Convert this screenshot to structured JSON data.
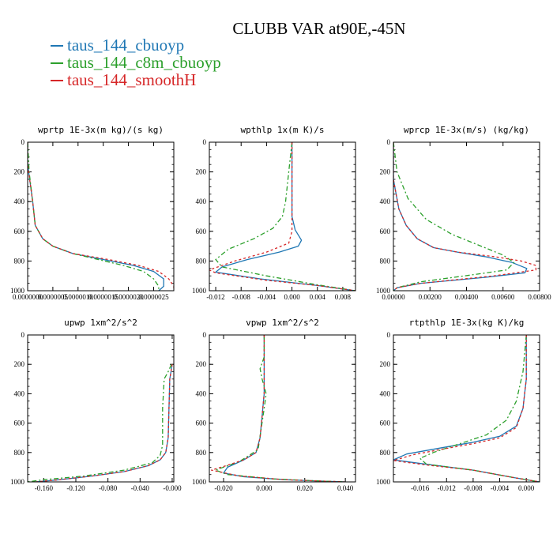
{
  "title": "CLUBB VAR at90E,-45N",
  "legend": [
    {
      "label": "taus_144_cbuoyp",
      "color": "#1f77b4"
    },
    {
      "label": "taus_144_c8m_cbuoyp",
      "color": "#2ca02c"
    },
    {
      "label": "taus_144_smoothH",
      "color": "#d62728"
    }
  ],
  "chart_data": [
    {
      "type": "line",
      "title": "wprtp  1E-3x(m kg)/(s kg)",
      "xlim": [
        0,
        2.9e-06
      ],
      "ylim": [
        0,
        1000
      ],
      "y_inverted": true,
      "xticks": [
        {
          "v": 0,
          "label": "0.0000000"
        },
        {
          "v": 5e-07,
          "label": "0.0000005"
        },
        {
          "v": 1e-06,
          "label": "0.0000010"
        },
        {
          "v": 1.5e-06,
          "label": "0.0000015"
        },
        {
          "v": 2e-06,
          "label": "0.0000020"
        },
        {
          "v": 2.5e-06,
          "label": "0.0000025"
        }
      ],
      "yticks": [
        {
          "v": 0,
          "label": "0"
        },
        {
          "v": 200,
          "label": "200"
        },
        {
          "v": 400,
          "label": "400"
        },
        {
          "v": 600,
          "label": "600"
        },
        {
          "v": 800,
          "label": "800"
        },
        {
          "v": 1000,
          "label": "1000"
        }
      ],
      "series": [
        {
          "name": "taus_144_cbuoyp",
          "color": "#1f77b4",
          "dash": "",
          "x": [
            0,
            0,
            1e-07,
            1.5e-07,
            3e-07,
            5e-07,
            9e-07,
            1.5e-06,
            2.1e-06,
            2.5e-06,
            2.7e-06,
            2.7e-06,
            2.6e-06
          ],
          "y": [
            0,
            150,
            400,
            560,
            650,
            700,
            750,
            790,
            830,
            870,
            920,
            970,
            1000
          ]
        },
        {
          "name": "taus_144_c8m_cbuoyp",
          "color": "#2ca02c",
          "dash": "6,3,2,3",
          "x": [
            0,
            3e-08,
            1e-07,
            1.5e-07,
            3e-07,
            5e-07,
            9e-07,
            1.4e-06,
            1.9e-06,
            2.3e-06,
            2.5e-06,
            2.6e-06,
            2.6e-06
          ],
          "y": [
            0,
            200,
            400,
            560,
            650,
            700,
            750,
            790,
            830,
            870,
            920,
            970,
            1000
          ]
        },
        {
          "name": "taus_144_smoothH",
          "color": "#d62728",
          "dash": "3,3",
          "x": [
            0,
            0,
            1e-07,
            1.5e-07,
            3e-07,
            5e-07,
            9e-07,
            1.6e-06,
            2.2e-06,
            2.6e-06,
            2.8e-06,
            2.9e-06,
            2.9e-06
          ],
          "y": [
            0,
            150,
            400,
            560,
            650,
            700,
            750,
            790,
            830,
            870,
            920,
            970,
            1000
          ]
        }
      ]
    },
    {
      "type": "line",
      "title": "wpthlp  1x(m K)/s",
      "xlim": [
        -0.013,
        0.01
      ],
      "ylim": [
        0,
        1000
      ],
      "y_inverted": true,
      "xticks": [
        {
          "v": -0.012,
          "label": "-0.012"
        },
        {
          "v": -0.008,
          "label": "-0.008"
        },
        {
          "v": -0.004,
          "label": "-0.004"
        },
        {
          "v": 0,
          "label": "0.000"
        },
        {
          "v": 0.004,
          "label": "0.004"
        },
        {
          "v": 0.008,
          "label": "0.008"
        }
      ],
      "yticks": [
        {
          "v": 0,
          "label": "0"
        },
        {
          "v": 200,
          "label": "200"
        },
        {
          "v": 400,
          "label": "400"
        },
        {
          "v": 600,
          "label": "600"
        },
        {
          "v": 800,
          "label": "800"
        },
        {
          "v": 1000,
          "label": "1000"
        }
      ],
      "series": [
        {
          "name": "taus_144_cbuoyp",
          "color": "#1f77b4",
          "dash": "",
          "x": [
            0,
            0,
            0,
            0,
            0.0005,
            0.0015,
            0.001,
            -0.002,
            -0.007,
            -0.011,
            -0.012,
            -0.005,
            0.004,
            0.01
          ],
          "y": [
            0,
            200,
            400,
            500,
            590,
            660,
            700,
            740,
            790,
            840,
            875,
            920,
            965,
            1000
          ]
        },
        {
          "name": "taus_144_c8m_cbuoyp",
          "color": "#2ca02c",
          "dash": "6,3,2,3",
          "x": [
            0,
            -0.0005,
            -0.001,
            -0.0015,
            -0.003,
            -0.006,
            -0.01,
            -0.012,
            -0.011,
            -0.004,
            0.004,
            0.01
          ],
          "y": [
            0,
            200,
            400,
            500,
            580,
            650,
            720,
            790,
            840,
            900,
            960,
            1000
          ]
        },
        {
          "name": "taus_144_smoothH",
          "color": "#d62728",
          "dash": "3,3",
          "x": [
            0,
            0,
            0,
            0,
            0,
            -0.0005,
            -0.004,
            -0.009,
            -0.013,
            -0.012,
            -0.004,
            0.004,
            0.01
          ],
          "y": [
            0,
            200,
            400,
            500,
            600,
            680,
            740,
            800,
            860,
            880,
            930,
            965,
            1000
          ]
        }
      ]
    },
    {
      "type": "line",
      "title": "wprcp  1E-3x(m/s) (kg/kg)",
      "xlim": [
        0,
        0.008
      ],
      "ylim": [
        0,
        1000
      ],
      "y_inverted": true,
      "xticks": [
        {
          "v": 0,
          "label": "0.00000"
        },
        {
          "v": 0.002,
          "label": "0.00200"
        },
        {
          "v": 0.004,
          "label": "0.00400"
        },
        {
          "v": 0.006,
          "label": "0.00600"
        },
        {
          "v": 0.008,
          "label": "0.00800"
        }
      ],
      "yticks": [
        {
          "v": 0,
          "label": "0"
        },
        {
          "v": 200,
          "label": "200"
        },
        {
          "v": 400,
          "label": "400"
        },
        {
          "v": 600,
          "label": "600"
        },
        {
          "v": 800,
          "label": "800"
        },
        {
          "v": 1000,
          "label": "1000"
        }
      ],
      "series": [
        {
          "name": "taus_144_cbuoyp",
          "color": "#1f77b4",
          "dash": "",
          "x": [
            0,
            0,
            0.0003,
            0.0007,
            0.0013,
            0.0022,
            0.0035,
            0.005,
            0.0065,
            0.0073,
            0.0072,
            0.005,
            0.0015,
            0.0002,
            0
          ],
          "y": [
            0,
            250,
            450,
            560,
            650,
            710,
            740,
            770,
            810,
            850,
            880,
            910,
            950,
            980,
            1000
          ]
        },
        {
          "name": "taus_144_c8m_cbuoyp",
          "color": "#2ca02c",
          "dash": "6,3,2,3",
          "x": [
            0,
            0.0002,
            0.0008,
            0.0018,
            0.0032,
            0.0048,
            0.006,
            0.0066,
            0.0062,
            0.0045,
            0.0015,
            0.0002,
            0
          ],
          "y": [
            0,
            200,
            380,
            520,
            620,
            700,
            760,
            810,
            860,
            890,
            940,
            980,
            1000
          ]
        },
        {
          "name": "taus_144_smoothH",
          "color": "#d62728",
          "dash": "3,3",
          "x": [
            0,
            0,
            0.0003,
            0.0007,
            0.0013,
            0.0022,
            0.0035,
            0.0055,
            0.007,
            0.0078,
            0.0078,
            0.0055,
            0.0015,
            0.0002,
            0
          ],
          "y": [
            0,
            250,
            450,
            560,
            650,
            710,
            740,
            770,
            800,
            830,
            860,
            900,
            950,
            980,
            1000
          ]
        }
      ]
    },
    {
      "type": "line",
      "title": "upwp  1xm^2/s^2",
      "xlim": [
        -0.18,
        0.002
      ],
      "ylim": [
        0,
        1000
      ],
      "y_inverted": true,
      "xticks": [
        {
          "v": -0.16,
          "label": "-0.160"
        },
        {
          "v": -0.12,
          "label": "-0.120"
        },
        {
          "v": -0.08,
          "label": "-0.080"
        },
        {
          "v": -0.04,
          "label": "-0.040"
        },
        {
          "v": 0,
          "label": "-0.000"
        }
      ],
      "yticks": [
        {
          "v": 0,
          "label": "0"
        },
        {
          "v": 200,
          "label": "200"
        },
        {
          "v": 400,
          "label": "400"
        },
        {
          "v": 600,
          "label": "600"
        },
        {
          "v": 800,
          "label": "800"
        },
        {
          "v": 1000,
          "label": "1000"
        }
      ],
      "series": [
        {
          "name": "taus_144_cbuoyp",
          "color": "#1f77b4",
          "dash": "",
          "x": [
            0,
            -0.003,
            -0.004,
            -0.005,
            -0.008,
            -0.015,
            -0.03,
            -0.06,
            -0.1,
            -0.14,
            -0.17
          ],
          "y": [
            200,
            300,
            500,
            700,
            800,
            850,
            890,
            930,
            960,
            985,
            1000
          ]
        },
        {
          "name": "taus_144_c8m_cbuoyp",
          "color": "#2ca02c",
          "dash": "6,3,2,3",
          "x": [
            -0.001,
            -0.005,
            -0.01,
            -0.012,
            -0.012,
            -0.015,
            -0.025,
            -0.06,
            -0.11,
            -0.16,
            -0.18
          ],
          "y": [
            200,
            250,
            300,
            500,
            750,
            820,
            870,
            920,
            960,
            985,
            1000
          ]
        },
        {
          "name": "taus_144_smoothH",
          "color": "#d62728",
          "dash": "3,3",
          "x": [
            0,
            -0.003,
            -0.004,
            -0.005,
            -0.008,
            -0.015,
            -0.03,
            -0.06,
            -0.1,
            -0.14,
            -0.17
          ],
          "y": [
            200,
            300,
            500,
            700,
            800,
            850,
            890,
            930,
            960,
            985,
            1000
          ]
        }
      ]
    },
    {
      "type": "line",
      "title": "vpwp  1xm^2/s^2",
      "xlim": [
        -0.027,
        0.045
      ],
      "ylim": [
        0,
        1000
      ],
      "y_inverted": true,
      "xticks": [
        {
          "v": -0.02,
          "label": "-0.020"
        },
        {
          "v": 0,
          "label": "0.000"
        },
        {
          "v": 0.02,
          "label": "0.020"
        },
        {
          "v": 0.04,
          "label": "0.040"
        }
      ],
      "yticks": [
        {
          "v": 0,
          "label": "0"
        },
        {
          "v": 200,
          "label": "200"
        },
        {
          "v": 400,
          "label": "400"
        },
        {
          "v": 600,
          "label": "600"
        },
        {
          "v": 800,
          "label": "800"
        },
        {
          "v": 1000,
          "label": "1000"
        }
      ],
      "series": [
        {
          "name": "taus_144_cbuoyp",
          "color": "#1f77b4",
          "dash": "",
          "x": [
            0,
            0,
            0,
            -0.001,
            -0.002,
            -0.004,
            -0.01,
            -0.018,
            -0.02,
            -0.01,
            0.01,
            0.03,
            0.04
          ],
          "y": [
            0,
            200,
            400,
            550,
            700,
            800,
            850,
            900,
            940,
            965,
            985,
            995,
            1000
          ]
        },
        {
          "name": "taus_144_c8m_cbuoyp",
          "color": "#2ca02c",
          "dash": "6,3,2,3",
          "x": [
            0,
            0,
            -0.002,
            -0.001,
            0.001,
            0,
            -0.003,
            -0.012,
            -0.024,
            -0.018,
            0.005,
            0.03,
            0.04
          ],
          "y": [
            0,
            150,
            230,
            300,
            400,
            500,
            780,
            860,
            920,
            950,
            980,
            995,
            1000
          ]
        },
        {
          "name": "taus_144_smoothH",
          "color": "#d62728",
          "dash": "3,3",
          "x": [
            0,
            0,
            0,
            -0.001,
            -0.002,
            -0.004,
            -0.01,
            -0.02,
            -0.026,
            -0.012,
            0.01,
            0.03,
            0.04
          ],
          "y": [
            0,
            200,
            400,
            550,
            700,
            800,
            850,
            895,
            920,
            960,
            985,
            995,
            1000
          ]
        }
      ]
    },
    {
      "type": "line",
      "title": "rtpthlp  1E-3x(kg K)/kg",
      "xlim": [
        -0.02,
        0.002
      ],
      "ylim": [
        0,
        1000
      ],
      "y_inverted": true,
      "xticks": [
        {
          "v": -0.016,
          "label": "-0.016"
        },
        {
          "v": -0.012,
          "label": "-0.012"
        },
        {
          "v": -0.008,
          "label": "-0.008"
        },
        {
          "v": -0.004,
          "label": "-0.004"
        },
        {
          "v": 0,
          "label": "0.000"
        }
      ],
      "yticks": [
        {
          "v": 0,
          "label": "0"
        },
        {
          "v": 200,
          "label": "200"
        },
        {
          "v": 400,
          "label": "400"
        },
        {
          "v": 600,
          "label": "600"
        },
        {
          "v": 800,
          "label": "800"
        },
        {
          "v": 1000,
          "label": "1000"
        }
      ],
      "series": [
        {
          "name": "taus_144_cbuoyp",
          "color": "#1f77b4",
          "dash": "",
          "x": [
            0,
            0,
            -0.0005,
            -0.0015,
            -0.004,
            -0.008,
            -0.013,
            -0.018,
            -0.02,
            -0.015,
            -0.008,
            -0.002,
            0.002
          ],
          "y": [
            0,
            300,
            500,
            620,
            690,
            730,
            770,
            810,
            850,
            880,
            920,
            970,
            1000
          ]
        },
        {
          "name": "taus_144_c8m_cbuoyp",
          "color": "#2ca02c",
          "dash": "6,3,2,3",
          "x": [
            0,
            -0.0005,
            -0.0015,
            -0.003,
            -0.006,
            -0.01,
            -0.014,
            -0.016,
            -0.015,
            -0.008,
            -0.002,
            0.002
          ],
          "y": [
            0,
            250,
            450,
            580,
            680,
            740,
            800,
            840,
            880,
            920,
            970,
            1000
          ]
        },
        {
          "name": "taus_144_smoothH",
          "color": "#d62728",
          "dash": "3,3",
          "x": [
            0,
            0,
            -0.0005,
            -0.0015,
            -0.004,
            -0.008,
            -0.013,
            -0.017,
            -0.02,
            -0.015,
            -0.008,
            -0.002,
            0.002
          ],
          "y": [
            0,
            300,
            500,
            630,
            700,
            740,
            780,
            815,
            855,
            885,
            920,
            970,
            1000
          ]
        }
      ]
    }
  ]
}
